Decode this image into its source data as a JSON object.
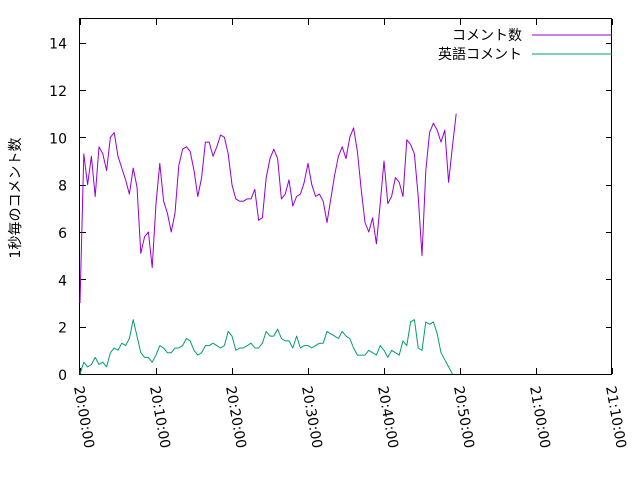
{
  "chart_data": {
    "type": "line",
    "title": "",
    "xlabel": "",
    "ylabel": "1秒毎のコメント数",
    "xlim": [
      "20:00:00",
      "21:10:00"
    ],
    "ylim": [
      0,
      15
    ],
    "x_ticks": [
      "20:00:00",
      "20:10:00",
      "20:20:00",
      "20:30:00",
      "20:40:00",
      "20:50:00",
      "21:00:00",
      "21:10:00"
    ],
    "y_ticks": [
      0,
      2,
      4,
      6,
      8,
      10,
      12,
      14
    ],
    "grid": false,
    "legend_position": "top-right",
    "x_step_seconds": 30,
    "series": [
      {
        "name": "コメント数",
        "color": "#9400d3",
        "values": [
          3.0,
          9.3,
          8.0,
          9.2,
          7.5,
          9.6,
          9.3,
          8.6,
          10.0,
          10.2,
          9.2,
          8.7,
          8.2,
          7.6,
          8.7,
          7.9,
          5.1,
          5.8,
          6.0,
          4.5,
          7.2,
          8.9,
          7.3,
          6.8,
          6.0,
          6.8,
          8.8,
          9.5,
          9.6,
          9.4,
          8.6,
          7.5,
          8.3,
          9.8,
          9.8,
          9.2,
          9.6,
          10.1,
          10.0,
          9.3,
          8.0,
          7.4,
          7.3,
          7.3,
          7.4,
          7.4,
          7.8,
          6.5,
          6.6,
          8.3,
          9.1,
          9.5,
          9.1,
          7.4,
          7.6,
          8.2,
          7.1,
          7.5,
          7.6,
          8.1,
          8.9,
          8.0,
          7.5,
          7.6,
          7.3,
          6.4,
          7.4,
          8.4,
          9.2,
          9.6,
          9.1,
          10.0,
          10.4,
          9.4,
          7.8,
          6.4,
          6.0,
          6.6,
          5.5,
          7.2,
          9.0,
          7.2,
          7.5,
          8.3,
          8.1,
          7.5,
          9.9,
          9.7,
          9.3,
          7.5,
          5.0,
          8.6,
          10.2,
          10.6,
          10.3,
          9.8,
          10.3,
          8.1,
          9.6,
          11.0
        ]
      },
      {
        "name": "英語コメント",
        "color": "#009e73",
        "values": [
          0.0,
          0.5,
          0.3,
          0.4,
          0.7,
          0.4,
          0.5,
          0.3,
          0.9,
          1.1,
          1.0,
          1.3,
          1.2,
          1.5,
          2.3,
          1.6,
          0.9,
          0.7,
          0.7,
          0.5,
          0.8,
          1.2,
          1.1,
          0.9,
          0.9,
          1.1,
          1.1,
          1.2,
          1.5,
          1.4,
          1.0,
          0.8,
          0.9,
          1.2,
          1.2,
          1.3,
          1.2,
          1.1,
          1.2,
          1.8,
          1.6,
          1.0,
          1.1,
          1.1,
          1.2,
          1.3,
          1.1,
          1.1,
          1.3,
          1.8,
          1.6,
          1.6,
          1.9,
          1.5,
          1.4,
          1.4,
          1.1,
          1.6,
          1.1,
          1.2,
          1.2,
          1.1,
          1.2,
          1.3,
          1.3,
          1.8,
          1.7,
          1.6,
          1.5,
          1.8,
          1.6,
          1.5,
          1.1,
          0.8,
          0.8,
          0.8,
          1.0,
          0.9,
          0.8,
          1.2,
          1.0,
          0.7,
          1.0,
          0.9,
          0.8,
          1.4,
          1.2,
          2.2,
          2.3,
          1.1,
          1.0,
          2.2,
          2.1,
          2.2,
          1.7,
          0.9,
          0.6,
          0.3,
          0.0
        ]
      }
    ]
  }
}
